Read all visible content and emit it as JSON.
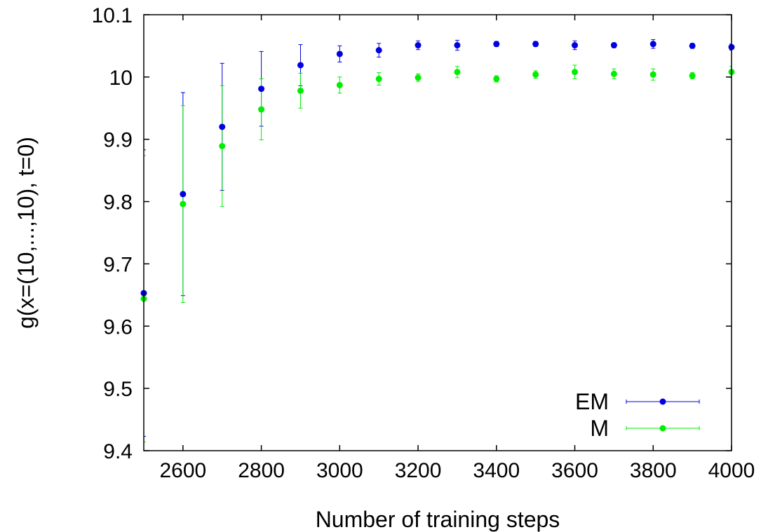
{
  "chart_data": {
    "type": "scatter",
    "title": "",
    "xlabel": "Number of training steps",
    "ylabel": "g(x=(10,...,10), t=0)",
    "xlim": [
      2500,
      4000
    ],
    "ylim": [
      9.4,
      10.1
    ],
    "xticks": [
      "2600",
      "2800",
      "3000",
      "3200",
      "3400",
      "3600",
      "3800",
      "4000"
    ],
    "yticks": [
      "9.4",
      "9.5",
      "9.6",
      "9.7",
      "9.8",
      "9.9",
      "10",
      "10.1"
    ],
    "grid": false,
    "legend_position": "bottom-right",
    "series": [
      {
        "name": "EM",
        "color": "#0000e0",
        "error_bars": true,
        "points": [
          {
            "x": 2500,
            "y": 9.653,
            "err": 0.23
          },
          {
            "x": 2600,
            "y": 9.812,
            "err": 0.163
          },
          {
            "x": 2700,
            "y": 9.92,
            "err": 0.102
          },
          {
            "x": 2800,
            "y": 9.981,
            "err": 0.06
          },
          {
            "x": 2900,
            "y": 10.019,
            "err": 0.033
          },
          {
            "x": 3000,
            "y": 10.037,
            "err": 0.013
          },
          {
            "x": 3100,
            "y": 10.043,
            "err": 0.011
          },
          {
            "x": 3200,
            "y": 10.051,
            "err": 0.007
          },
          {
            "x": 3300,
            "y": 10.051,
            "err": 0.008
          },
          {
            "x": 3400,
            "y": 10.053,
            "err": 0.004
          },
          {
            "x": 3500,
            "y": 10.053,
            "err": 0.004
          },
          {
            "x": 3600,
            "y": 10.051,
            "err": 0.007
          },
          {
            "x": 3700,
            "y": 10.051,
            "err": 0.004
          },
          {
            "x": 3800,
            "y": 10.053,
            "err": 0.007
          },
          {
            "x": 3900,
            "y": 10.05,
            "err": 0.004
          },
          {
            "x": 4000,
            "y": 10.048,
            "err": 0.005
          }
        ]
      },
      {
        "name": "M",
        "color": "#00ee00",
        "error_bars": true,
        "points": [
          {
            "x": 2500,
            "y": 9.644,
            "err": 0.23
          },
          {
            "x": 2600,
            "y": 9.796,
            "err": 0.158
          },
          {
            "x": 2700,
            "y": 9.889,
            "err": 0.097
          },
          {
            "x": 2800,
            "y": 9.948,
            "err": 0.049
          },
          {
            "x": 2900,
            "y": 9.978,
            "err": 0.028
          },
          {
            "x": 3000,
            "y": 9.987,
            "err": 0.013
          },
          {
            "x": 3100,
            "y": 9.997,
            "err": 0.01
          },
          {
            "x": 3200,
            "y": 9.999,
            "err": 0.006
          },
          {
            "x": 3300,
            "y": 10.008,
            "err": 0.009
          },
          {
            "x": 3400,
            "y": 9.997,
            "err": 0.005
          },
          {
            "x": 3500,
            "y": 10.004,
            "err": 0.006
          },
          {
            "x": 3600,
            "y": 10.008,
            "err": 0.011
          },
          {
            "x": 3700,
            "y": 10.005,
            "err": 0.008
          },
          {
            "x": 3800,
            "y": 10.004,
            "err": 0.009
          },
          {
            "x": 3900,
            "y": 10.002,
            "err": 0.005
          },
          {
            "x": 4000,
            "y": 10.008,
            "err": 0.009
          }
        ]
      }
    ]
  }
}
